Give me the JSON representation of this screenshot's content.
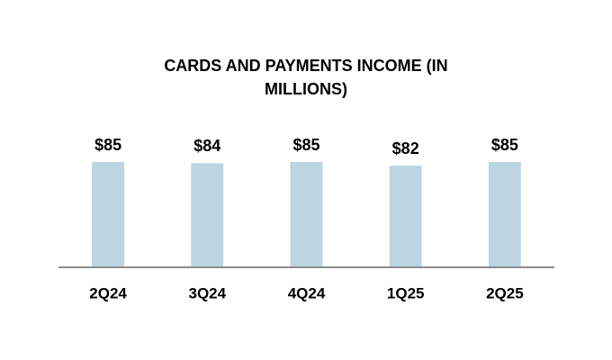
{
  "chart_data": {
    "type": "bar",
    "title": "CARDS AND PAYMENTS INCOME (IN MILLIONS)",
    "categories": [
      "2Q24",
      "3Q24",
      "4Q24",
      "1Q25",
      "2Q25"
    ],
    "values": [
      85,
      84,
      85,
      82,
      85
    ],
    "value_labels": [
      "$85",
      "$84",
      "$85",
      "$82",
      "$85"
    ],
    "color": "#bdd5e1"
  }
}
